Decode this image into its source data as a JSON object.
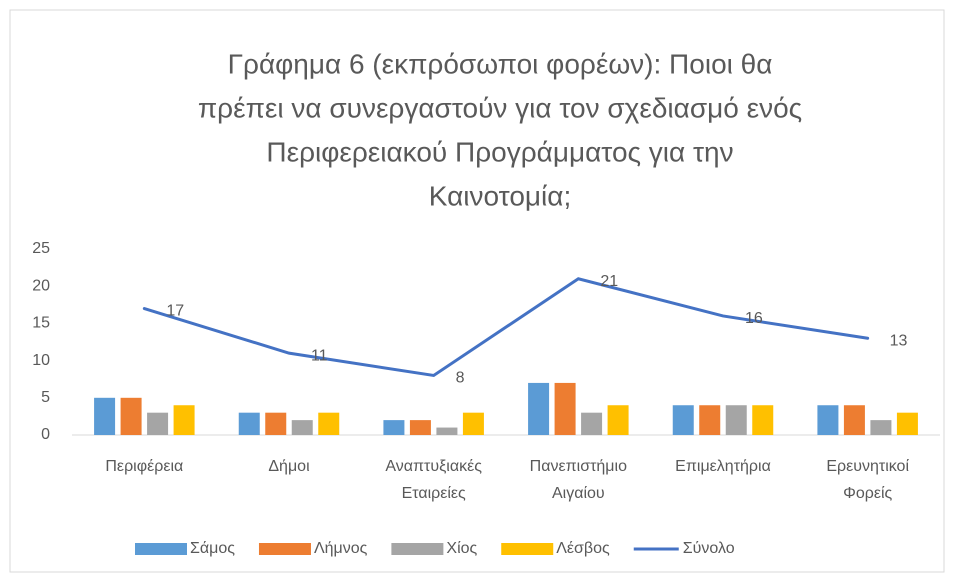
{
  "chart_data": {
    "type": "combo",
    "title": [
      "Γράφημα 6 (εκπρόσωποι φορέων): Ποιοι θα",
      "πρέπει να συνεργαστούν για τον σχεδιασμό ενός",
      "Περιφερειακού Προγράμματος για την",
      "Καινοτομία;"
    ],
    "categories": [
      "Περιφέρεια",
      "Δήμοι",
      "Αναπτυξιακές Εταιρείες",
      "Πανεπιστήμιο Αιγαίου",
      "Επιμελητήρια",
      "Ερευνητικοί Φορείς"
    ],
    "series": [
      {
        "name": "Σάμος",
        "color": "#5b9bd5",
        "kind": "bar",
        "values": [
          5,
          3,
          2,
          7,
          4,
          4
        ]
      },
      {
        "name": "Λήμνος",
        "color": "#ed7d31",
        "kind": "bar",
        "values": [
          5,
          3,
          2,
          7,
          4,
          4
        ]
      },
      {
        "name": "Χίος",
        "color": "#a5a5a5",
        "kind": "bar",
        "values": [
          3,
          2,
          1,
          3,
          4,
          2
        ]
      },
      {
        "name": "Λέσβος",
        "color": "#ffc000",
        "kind": "bar",
        "values": [
          4,
          3,
          3,
          4,
          4,
          3
        ]
      },
      {
        "name": "Σύνολο",
        "color": "#4472c4",
        "kind": "line",
        "values": [
          17,
          11,
          8,
          21,
          16,
          13
        ],
        "data_labels": true
      }
    ],
    "ylim": [
      0,
      25
    ],
    "yticks": [
      0,
      5,
      10,
      15,
      20,
      25
    ],
    "grid": false,
    "legend": "bottom"
  }
}
